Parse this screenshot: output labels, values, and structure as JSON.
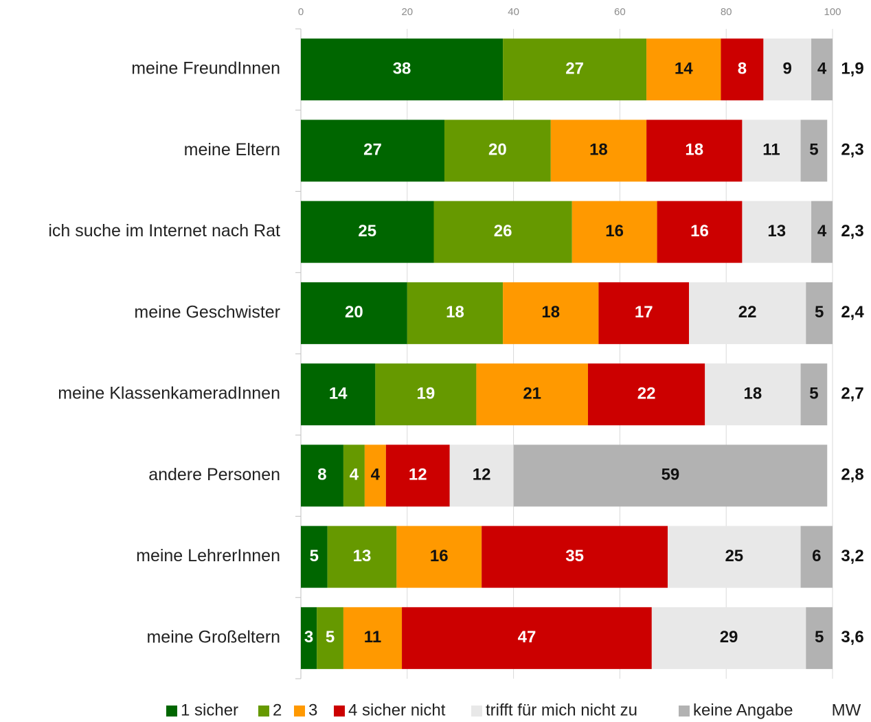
{
  "chart_data": {
    "type": "stacked_barh",
    "categories": [
      "meine FreundInnen",
      "meine Eltern",
      "ich suche im Internet nach Rat",
      "meine Geschwister",
      "meine KlassenkameradInnen",
      "andere Personen",
      "meine LehrerInnen",
      "meine Großeltern"
    ],
    "series": [
      {
        "name": "1 sicher",
        "color": "#006600",
        "values": [
          38,
          27,
          25,
          20,
          14,
          8,
          5,
          3
        ]
      },
      {
        "name": "2",
        "color": "#669900",
        "values": [
          27,
          20,
          26,
          18,
          19,
          4,
          13,
          5
        ]
      },
      {
        "name": "3",
        "color": "#ff9900",
        "values": [
          14,
          18,
          16,
          18,
          21,
          4,
          16,
          11
        ]
      },
      {
        "name": "4 sicher nicht",
        "color": "#cc0000",
        "values": [
          8,
          18,
          16,
          17,
          22,
          12,
          35,
          47
        ]
      },
      {
        "name": "trifft für mich nicht zu",
        "color": "#e8e8e8",
        "values": [
          9,
          11,
          13,
          22,
          18,
          12,
          25,
          29
        ]
      },
      {
        "name": "keine Angabe",
        "color": "#b2b2b2",
        "values": [
          4,
          5,
          4,
          5,
          5,
          59,
          6,
          5
        ]
      }
    ],
    "mean": {
      "name": "MW",
      "values": [
        1.9,
        2.3,
        2.3,
        2.4,
        2.7,
        2.8,
        3.2,
        3.6
      ],
      "value_labels": [
        "1,9",
        "2,3",
        "2,3",
        "2,4",
        "2,7",
        "2,8",
        "3,2",
        "3,6"
      ]
    },
    "xlim": [
      0,
      100
    ],
    "xticks": [
      0,
      20,
      40,
      60,
      80,
      100
    ],
    "grid": true,
    "legend": "bottom"
  }
}
